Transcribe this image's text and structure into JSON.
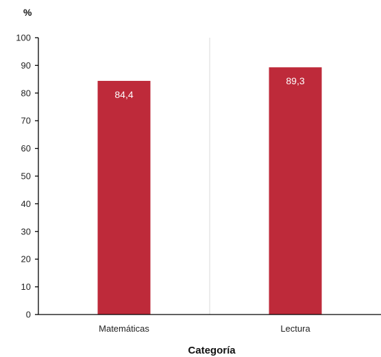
{
  "chart_data": {
    "type": "bar",
    "categories": [
      "Matemáticas",
      "Lectura"
    ],
    "values": [
      84.4,
      89.3
    ],
    "value_labels": [
      "84,4",
      "89,3"
    ],
    "ylabel": "%",
    "xlabel": "Categoría",
    "ylim": [
      0,
      100
    ],
    "yticks": [
      0,
      10,
      20,
      30,
      40,
      50,
      60,
      70,
      80,
      90,
      100
    ],
    "ytick_labels": [
      "0",
      "10",
      "20",
      "30",
      "40",
      "50",
      "60",
      "70",
      "80",
      "90",
      "100"
    ],
    "grid": false,
    "bar_color": "#be2a3a",
    "axis_color": "#000000",
    "separator_color": "#d8d8d8"
  }
}
